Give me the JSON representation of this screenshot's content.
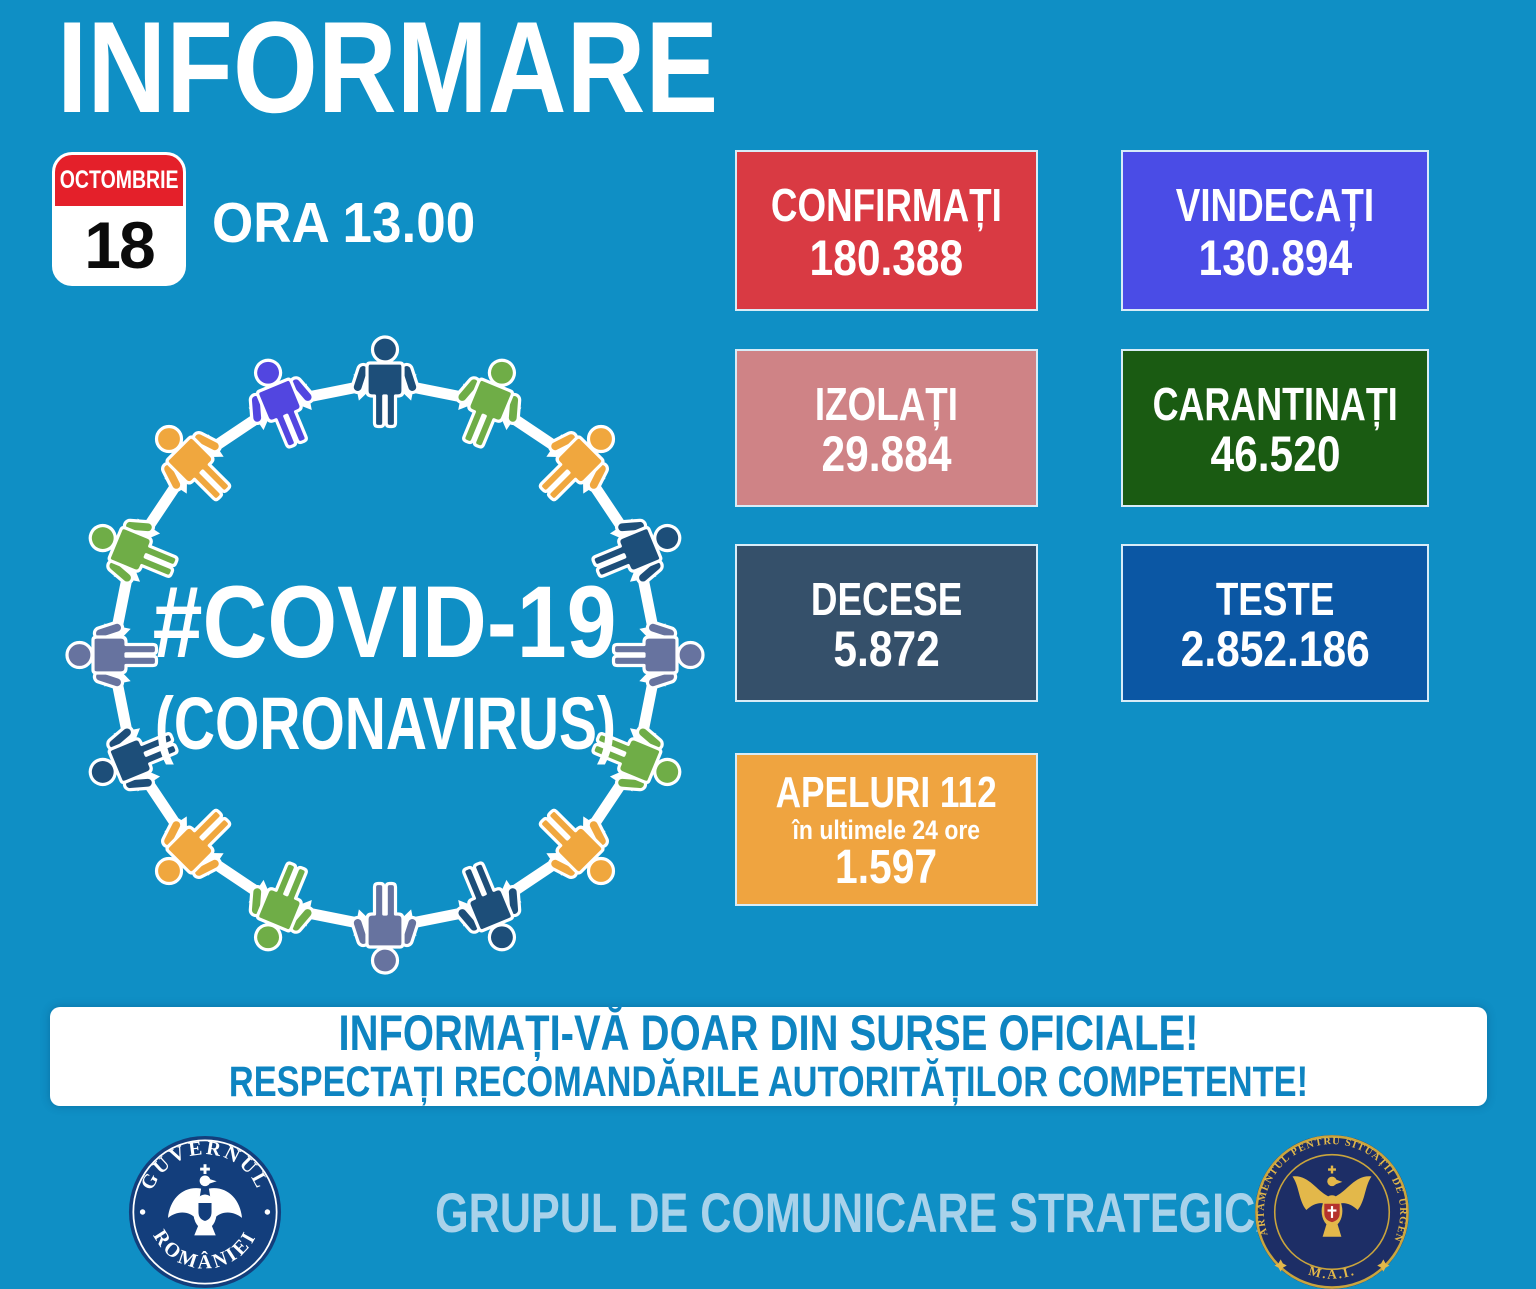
{
  "title": "INFORMARE",
  "calendar": {
    "month": "OCTOMBRIE",
    "day": "18"
  },
  "time_label": "ORA 13.00",
  "diagram": {
    "center_line1": "#COVID-19",
    "center_line2": "(CORONAVIRUS)",
    "person_colors": [
      "#1d4e79",
      "#6fad47",
      "#f0a73e",
      "#1d4e79",
      "#67739f",
      "#6fad47",
      "#f0a73e",
      "#1d4e79",
      "#67739f",
      "#6fad47",
      "#f0a73e",
      "#1d4e79",
      "#67739f",
      "#6fad47",
      "#f0a73e",
      "#5246e0"
    ]
  },
  "stats": [
    {
      "label": "CONFIRMAȚI",
      "value": "180.388",
      "bg": "#d93a43"
    },
    {
      "label": "VINDECAȚI",
      "value": "130.894",
      "bg": "#4a4ce6"
    },
    {
      "label": "IZOLAȚI",
      "value": "29.884",
      "bg": "#cf8386"
    },
    {
      "label": "CARANTINAȚI",
      "value": "46.520",
      "bg": "#1a5b12"
    },
    {
      "label": "DECESE",
      "value": "5.872",
      "bg": "#35506a"
    },
    {
      "label": "TESTE",
      "value": "2.852.186",
      "bg": "#0b57a4"
    },
    {
      "label": "APELURI 112",
      "sublabel": "în ultimele 24 ore",
      "value": "1.597",
      "bg": "#efa440"
    }
  ],
  "banner": {
    "line1": "INFORMAȚI-VĂ DOAR DIN SURSE OFICIALE!",
    "line2": "RESPECTAȚI RECOMANDĂRILE AUTORITĂȚILOR COMPETENTE!"
  },
  "footer": {
    "group_label": "GRUPUL DE COMUNICARE STRATEGICĂ",
    "gov_logo": {
      "arc_top": "GUVERNUL",
      "arc_bottom": "ROMÂNIEI"
    },
    "dsu_logo": {
      "arc_text": "DEPARTAMENTUL PENTRU SITUAȚII DE URGENȚĂ",
      "bottom_text": "M.A.I."
    }
  },
  "colors": {
    "background": "#0f8fc5",
    "banner_text": "#0e84c1",
    "calendar_red": "#e4202a",
    "group_label": "#a9d2ea",
    "gov_navy": "#133e7c",
    "dsu_navy": "#1d2e66",
    "dsu_gold": "#e3b84a"
  }
}
